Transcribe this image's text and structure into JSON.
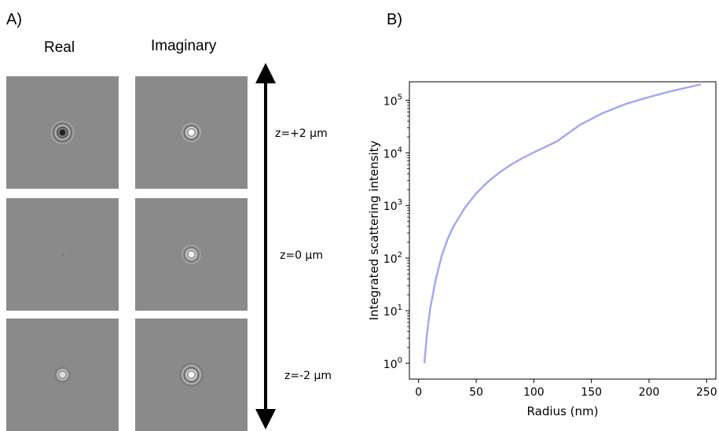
{
  "panel_a": {
    "label": "A)",
    "columns": [
      "Real",
      "Imaginary"
    ],
    "rows": [
      {
        "z_label": "z=+2 μm"
      },
      {
        "z_label": "z=0 μm"
      },
      {
        "z_label": "z=-2 μm"
      }
    ],
    "arrow_color": "#000000"
  },
  "panel_b": {
    "label": "B)"
  },
  "chart_data": {
    "type": "line",
    "xlabel": "Radius (nm)",
    "ylabel": "Integrated scattering intensity",
    "xlim": [
      -8,
      258
    ],
    "ylim_log10": [
      -0.3,
      5.35
    ],
    "yscale": "log",
    "xticks": [
      "0",
      "50",
      "100",
      "150",
      "200",
      "250"
    ],
    "xtick_values": [
      0,
      50,
      100,
      150,
      200,
      250
    ],
    "yticks": [
      {
        "base": "10",
        "exp": "0"
      },
      {
        "base": "10",
        "exp": "1"
      },
      {
        "base": "10",
        "exp": "2"
      },
      {
        "base": "10",
        "exp": "3"
      },
      {
        "base": "10",
        "exp": "4"
      },
      {
        "base": "10",
        "exp": "5"
      }
    ],
    "ytick_exponents": [
      0,
      1,
      2,
      3,
      4,
      5
    ],
    "series": [
      {
        "color": "#a5a8f2",
        "x": [
          5,
          7,
          10,
          15,
          20,
          25,
          30,
          40,
          50,
          60,
          70,
          80,
          90,
          100,
          120,
          140,
          160,
          180,
          200,
          220,
          245
        ],
        "y": [
          1,
          3.2,
          11,
          40,
          110,
          225,
          390,
          900,
          1700,
          2800,
          4200,
          5900,
          7900,
          10200,
          16500,
          34000,
          57000,
          85000,
          115000,
          150000,
          200000
        ]
      }
    ]
  }
}
